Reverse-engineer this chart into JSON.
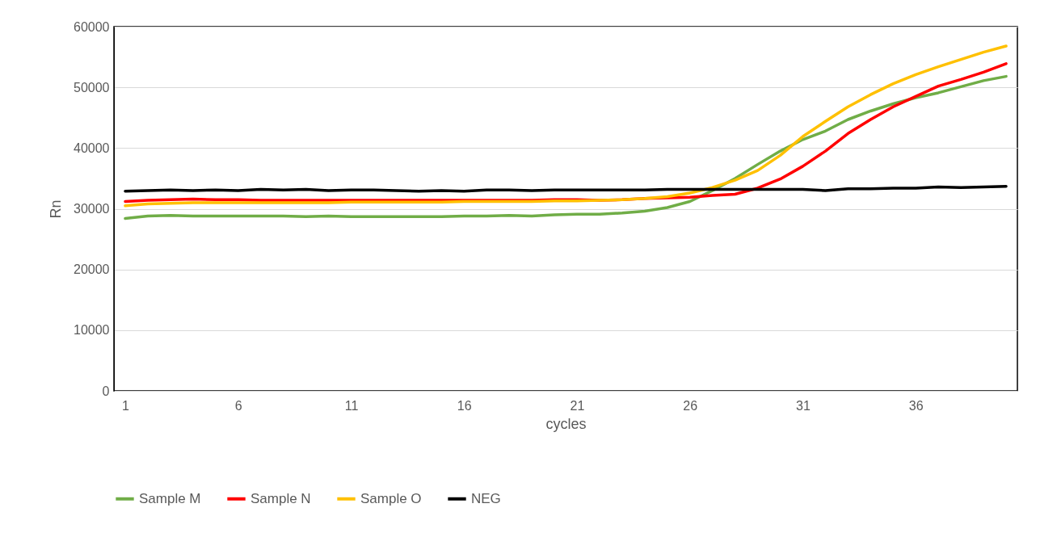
{
  "chart_data": {
    "type": "line",
    "xlabel": "cycles",
    "ylabel": "Rn",
    "categories": [
      "1",
      null,
      null,
      null,
      null,
      "6",
      null,
      null,
      null,
      null,
      "11",
      null,
      null,
      null,
      null,
      "16",
      null,
      null,
      null,
      null,
      "21",
      null,
      null,
      null,
      null,
      "26",
      null,
      null,
      null,
      null,
      "31",
      null,
      null,
      null,
      null,
      "36",
      null,
      null,
      null,
      null
    ],
    "series": [
      {
        "name": "Sample M",
        "color": "#70ad47",
        "values": [
          28400,
          28800,
          28900,
          28800,
          28800,
          28800,
          28800,
          28800,
          28700,
          28800,
          28700,
          28700,
          28700,
          28700,
          28700,
          28800,
          28800,
          28900,
          28800,
          29000,
          29100,
          29100,
          29300,
          29600,
          30200,
          31200,
          33000,
          35000,
          37300,
          39500,
          41400,
          42800,
          44700,
          46100,
          47300,
          48300,
          49100,
          50100,
          51100,
          51800
        ]
      },
      {
        "name": "Sample N",
        "color": "#ff0000",
        "values": [
          31200,
          31400,
          31500,
          31600,
          31500,
          31500,
          31400,
          31400,
          31400,
          31400,
          31400,
          31400,
          31400,
          31400,
          31400,
          31400,
          31400,
          31400,
          31400,
          31500,
          31500,
          31400,
          31500,
          31700,
          31800,
          31900,
          32200,
          32400,
          33400,
          34900,
          37000,
          39500,
          42400,
          44700,
          46800,
          48500,
          50200,
          51300,
          52500,
          53900
        ]
      },
      {
        "name": "Sample O",
        "color": "#ffc000",
        "values": [
          30500,
          30800,
          30900,
          31000,
          31000,
          31000,
          31000,
          31000,
          31000,
          31000,
          31100,
          31100,
          31100,
          31100,
          31100,
          31200,
          31200,
          31200,
          31200,
          31300,
          31300,
          31400,
          31500,
          31700,
          32000,
          32600,
          33500,
          34700,
          36300,
          38800,
          41900,
          44400,
          46800,
          48800,
          50600,
          52100,
          53400,
          54600,
          55800,
          56800
        ]
      },
      {
        "name": "NEG",
        "color": "#000000",
        "values": [
          32900,
          33000,
          33100,
          33000,
          33100,
          33000,
          33200,
          33100,
          33200,
          33000,
          33100,
          33100,
          33000,
          32900,
          33000,
          32900,
          33100,
          33100,
          33000,
          33100,
          33100,
          33100,
          33100,
          33100,
          33200,
          33200,
          33200,
          33200,
          33200,
          33200,
          33200,
          33000,
          33300,
          33300,
          33400,
          33400,
          33600,
          33500,
          33600,
          33700
        ]
      }
    ],
    "ylim": [
      0,
      60000
    ],
    "yticks": [
      0,
      10000,
      20000,
      30000,
      40000,
      50000,
      60000
    ],
    "grid": "y",
    "legend": "bottom"
  }
}
